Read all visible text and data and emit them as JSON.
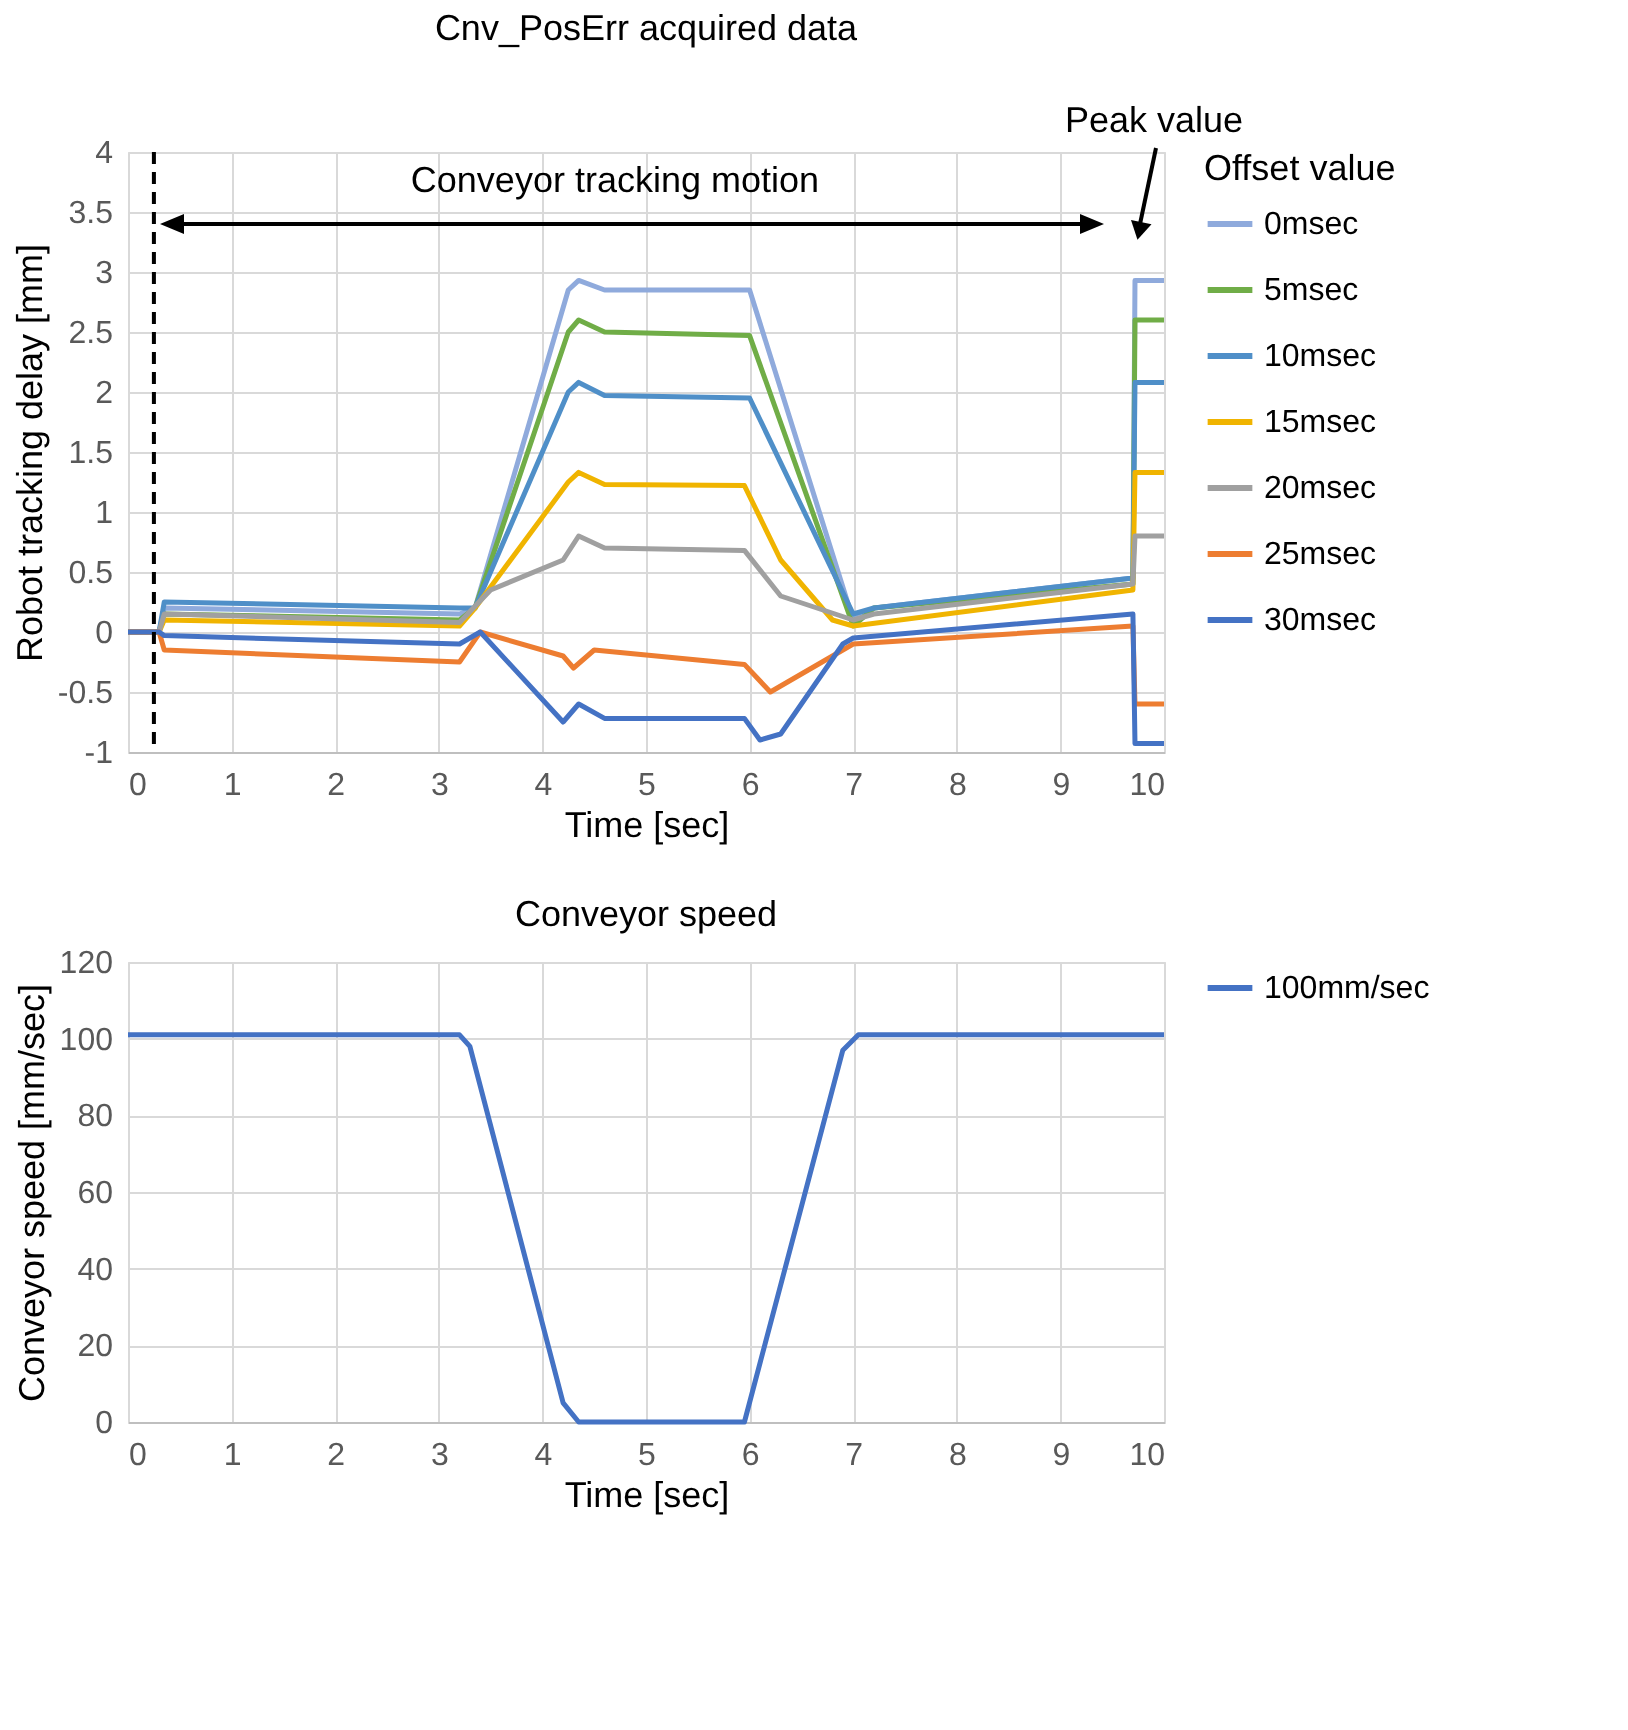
{
  "chart_data": [
    {
      "type": "line",
      "title": "Cnv_PosErr acquired data",
      "xlabel": "Time [sec]",
      "ylabel": "Robot tracking delay [mm]",
      "legend_title": "Offset value",
      "legend": "right",
      "grid": true,
      "xlim": [
        0,
        10
      ],
      "xticks": [
        0,
        1,
        2,
        3,
        4,
        5,
        6,
        7,
        8,
        9,
        10
      ],
      "ylim": [
        -1,
        4
      ],
      "yticks": [
        -1,
        -0.5,
        0,
        0.5,
        1,
        1.5,
        2,
        2.5,
        3,
        3.5,
        4
      ],
      "ref_lines": [
        {
          "axis": "x",
          "value": 0.25,
          "line_style": "dashed",
          "color": "#000000"
        }
      ],
      "annotations": [
        "Conveyor tracking motion",
        "Peak value"
      ],
      "series": [
        {
          "name": "0msec",
          "color": "#8faadc",
          "x": [
            0,
            0.3,
            0.35,
            3.2,
            3.35,
            4.25,
            4.35,
            4.6,
            6.0,
            7.0,
            7.2,
            9.7,
            9.72,
            10
          ],
          "values": [
            0,
            0,
            0.2,
            0.15,
            0.2,
            2.85,
            2.93,
            2.85,
            2.85,
            0.1,
            0.2,
            0.45,
            2.93,
            2.93
          ]
        },
        {
          "name": "5msec",
          "color": "#70ad47",
          "x": [
            0,
            0.3,
            0.35,
            3.2,
            3.35,
            4.25,
            4.35,
            4.6,
            6.0,
            7.0,
            7.2,
            9.7,
            9.72,
            10
          ],
          "values": [
            0,
            0,
            0.15,
            0.1,
            0.2,
            2.5,
            2.6,
            2.5,
            2.47,
            0.05,
            0.2,
            0.4,
            2.6,
            2.6
          ]
        },
        {
          "name": "10msec",
          "color": "#4f8fc8",
          "x": [
            0,
            0.3,
            0.35,
            3.2,
            3.35,
            4.25,
            4.35,
            4.6,
            6.0,
            7.0,
            7.2,
            9.7,
            9.72,
            10
          ],
          "values": [
            0,
            0,
            0.25,
            0.2,
            0.2,
            2.0,
            2.08,
            1.97,
            1.95,
            0.15,
            0.2,
            0.45,
            2.08,
            2.08
          ]
        },
        {
          "name": "15msec",
          "color": "#f0b400",
          "x": [
            0,
            0.3,
            0.35,
            3.2,
            3.35,
            4.25,
            4.35,
            4.6,
            5.95,
            6.3,
            6.8,
            7.0,
            9.7,
            9.72,
            10
          ],
          "values": [
            0,
            0,
            0.1,
            0.05,
            0.2,
            1.25,
            1.33,
            1.23,
            1.22,
            0.6,
            0.1,
            0.05,
            0.35,
            1.33,
            1.33
          ]
        },
        {
          "name": "20msec",
          "color": "#a0a0a0",
          "x": [
            0,
            0.3,
            0.35,
            3.2,
            3.5,
            4.2,
            4.35,
            4.6,
            5.95,
            6.3,
            7.0,
            7.2,
            9.7,
            9.72,
            10
          ],
          "values": [
            0,
            0,
            0.15,
            0.08,
            0.35,
            0.6,
            0.8,
            0.7,
            0.68,
            0.3,
            0.1,
            0.15,
            0.4,
            0.8,
            0.8
          ]
        },
        {
          "name": "25msec",
          "color": "#ed7d31",
          "x": [
            0,
            0.3,
            0.35,
            3.2,
            3.4,
            4.2,
            4.3,
            4.5,
            5.95,
            6.2,
            6.3,
            7.0,
            9.7,
            9.72,
            10
          ],
          "values": [
            0,
            0,
            -0.15,
            -0.25,
            0,
            -0.2,
            -0.3,
            -0.15,
            -0.27,
            -0.5,
            -0.45,
            -0.1,
            0.05,
            -0.6,
            -0.6
          ]
        },
        {
          "name": "30msec",
          "color": "#4472c4",
          "x": [
            0,
            0.3,
            0.35,
            3.2,
            3.4,
            4.2,
            4.35,
            4.6,
            5.95,
            6.1,
            6.3,
            6.9,
            7.0,
            9.7,
            9.72,
            10
          ],
          "values": [
            0,
            0,
            -0.03,
            -0.1,
            0,
            -0.75,
            -0.6,
            -0.72,
            -0.72,
            -0.9,
            -0.85,
            -0.1,
            -0.05,
            0.15,
            -0.93,
            -0.93
          ]
        }
      ]
    },
    {
      "type": "line",
      "title": "Conveyor speed",
      "xlabel": "Time [sec]",
      "ylabel": "Conveyor speed [mm/sec]",
      "legend": "right",
      "grid": true,
      "xlim": [
        0,
        10
      ],
      "xticks": [
        0,
        1,
        2,
        3,
        4,
        5,
        6,
        7,
        8,
        9,
        10
      ],
      "ylim": [
        0,
        120
      ],
      "yticks": [
        0,
        20,
        40,
        60,
        80,
        100,
        120
      ],
      "series": [
        {
          "name": "100mm/sec",
          "color": "#4472c4",
          "x": [
            0,
            3.2,
            3.3,
            4.2,
            4.35,
            5.95,
            6.9,
            7.05,
            10
          ],
          "values": [
            101,
            101,
            98,
            5,
            0,
            0,
            97,
            101,
            101
          ]
        }
      ]
    }
  ]
}
